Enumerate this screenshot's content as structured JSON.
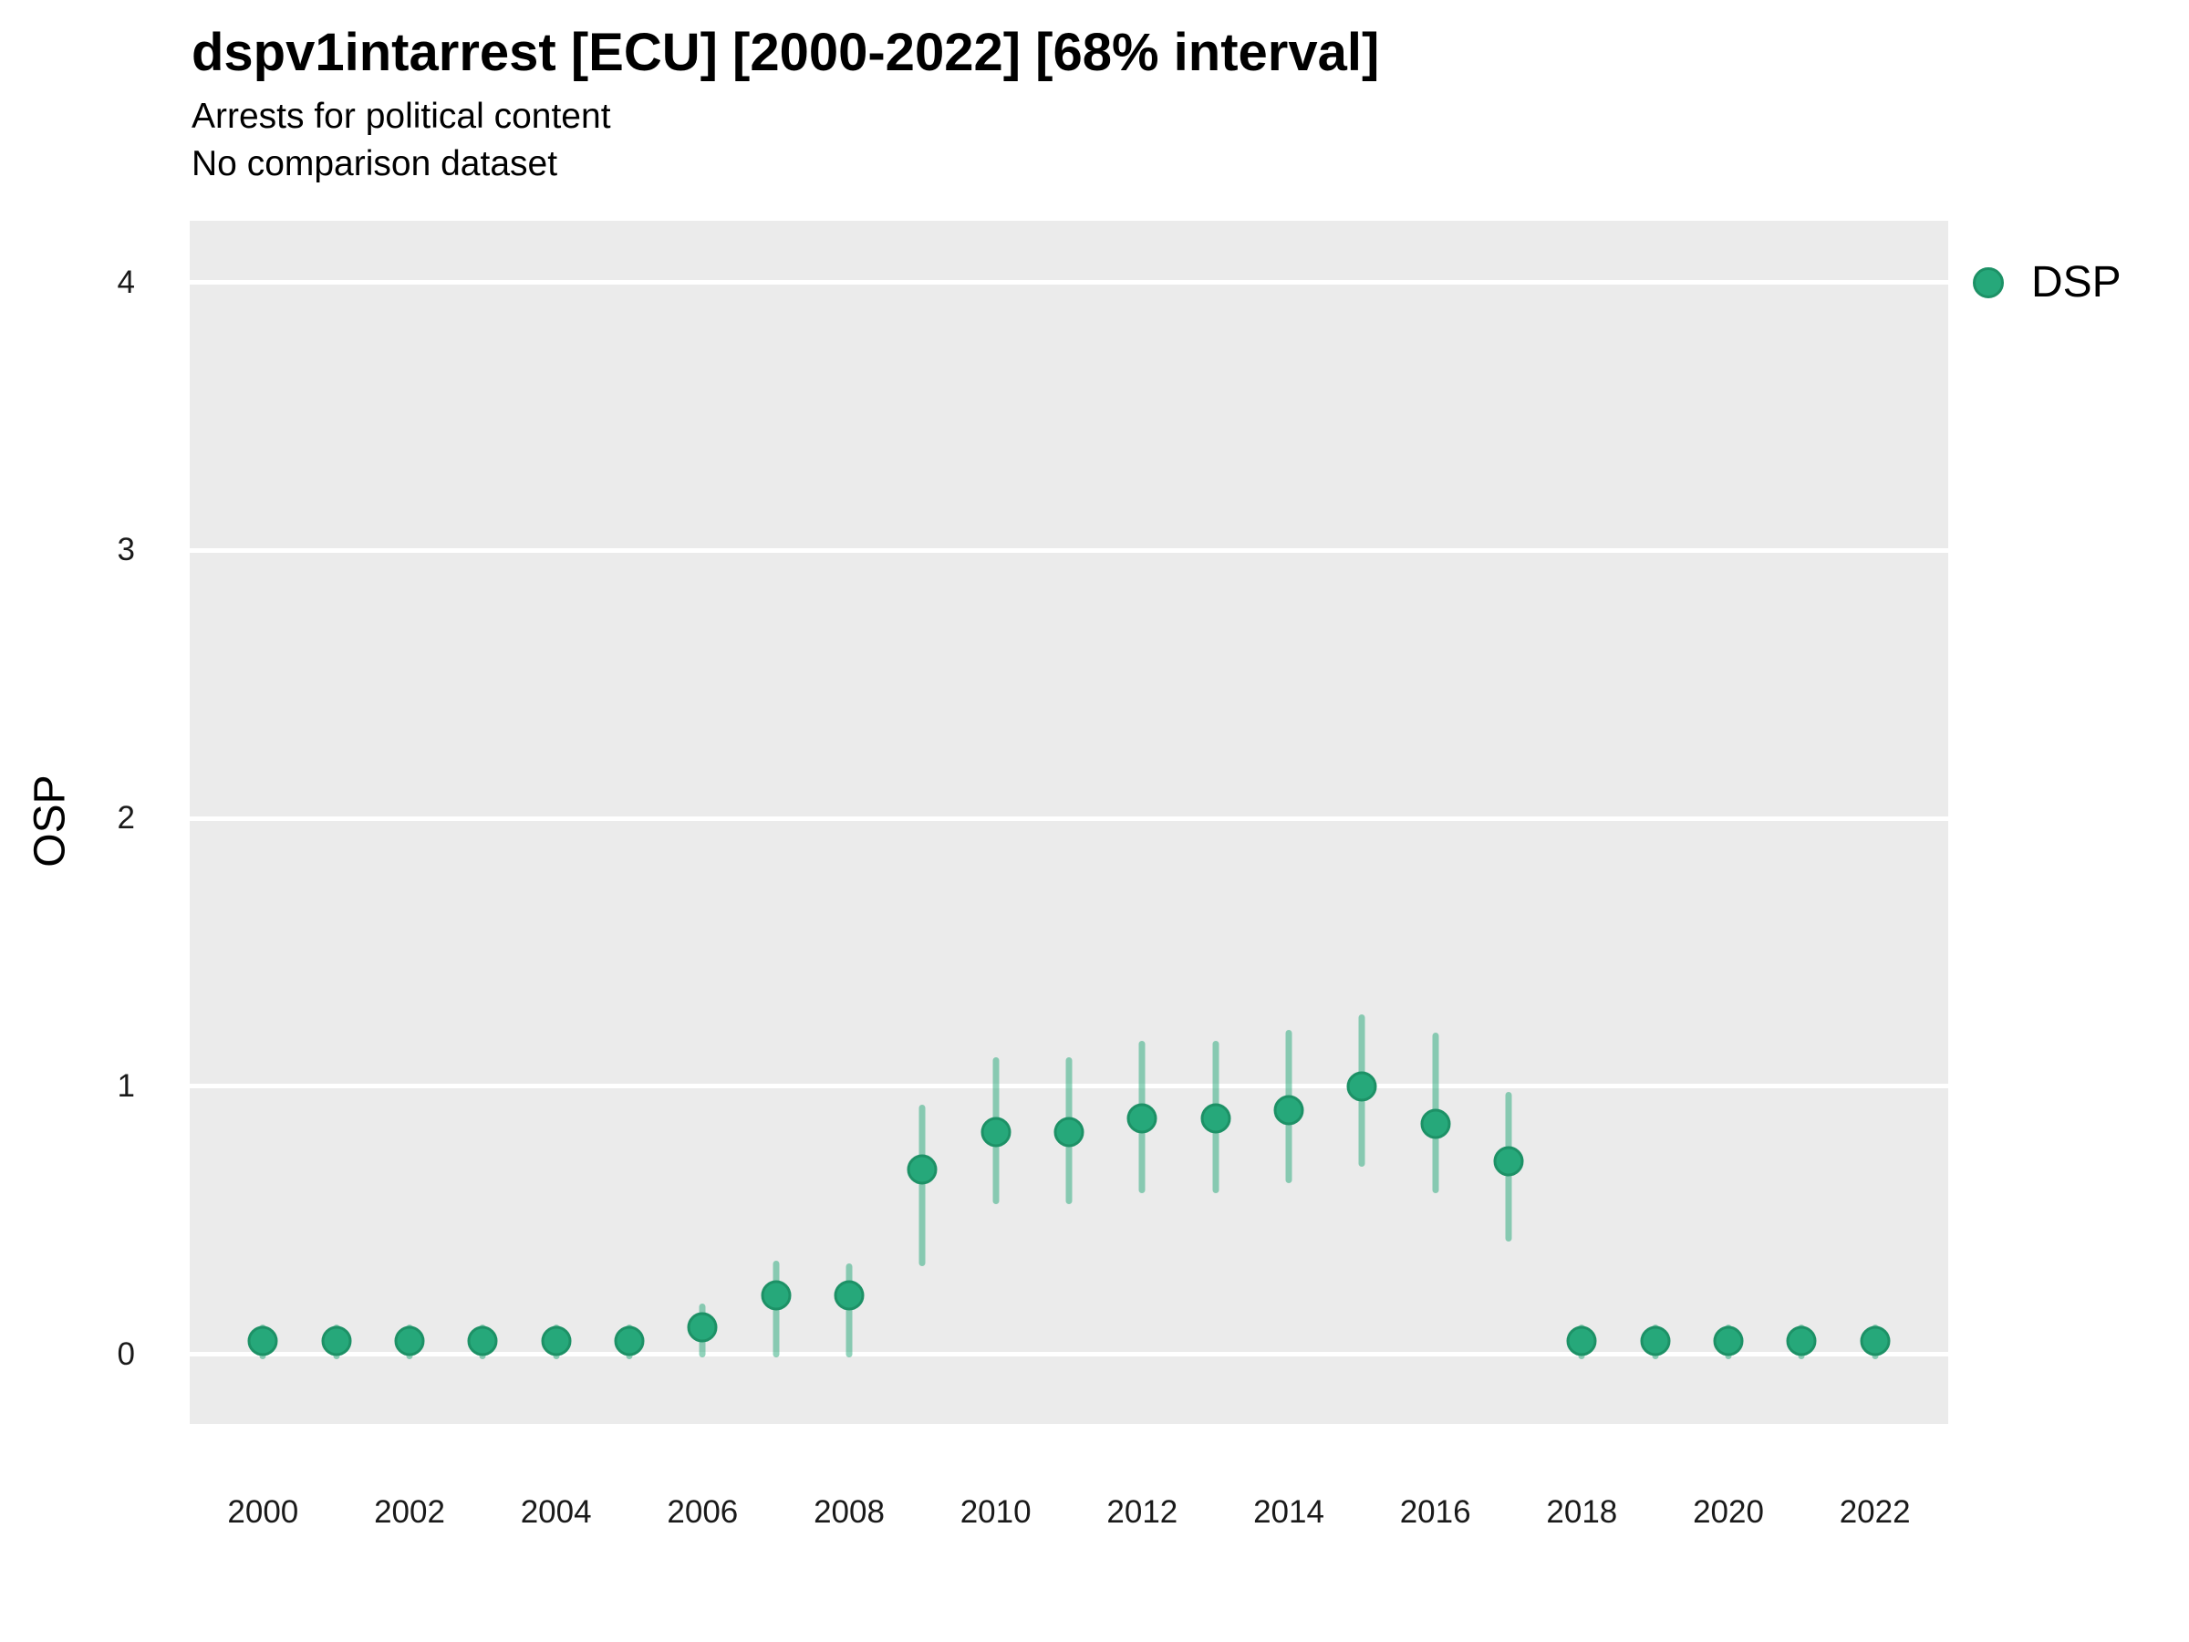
{
  "header": {
    "title": "dspv1intarrest [ECU] [2000-2022] [68% interval]",
    "subtitle_line1": "Arrests for political content",
    "subtitle_line2": "No comparison dataset"
  },
  "legend": {
    "label": "DSP",
    "marker_color": "#26A87A",
    "position": "top-right"
  },
  "axes": {
    "y_title": "OSP",
    "x_title": ""
  },
  "chart_data": {
    "type": "scatter",
    "title": "dspv1intarrest [ECU] [2000-2022] [68% interval]",
    "subtitle": [
      "Arrests for political content",
      "No comparison dataset"
    ],
    "xlabel": "",
    "ylabel": "OSP",
    "interval_label": "68% interval",
    "x_ticks": [
      2000,
      2002,
      2004,
      2006,
      2008,
      2010,
      2012,
      2014,
      2016,
      2018,
      2020,
      2022
    ],
    "y_ticks": [
      0,
      1,
      2,
      3,
      4
    ],
    "xlim": [
      1999,
      2023
    ],
    "ylim": [
      -0.26,
      4.23
    ],
    "grid": "horizontal-major-only",
    "legend_position": "top-right",
    "panel_bg": "#EBEBEB",
    "gridline_color": "#FFFFFF",
    "series": [
      {
        "name": "DSP",
        "point_color": "#26A87A",
        "point_edge_color": "#1D9166",
        "interval_color": "#23A878",
        "interval_alpha": 0.5,
        "points": [
          {
            "year": 2000,
            "est": 0.05,
            "lo": -0.02,
            "hi": 0.11
          },
          {
            "year": 2001,
            "est": 0.05,
            "lo": -0.02,
            "hi": 0.11
          },
          {
            "year": 2002,
            "est": 0.05,
            "lo": -0.02,
            "hi": 0.11
          },
          {
            "year": 2003,
            "est": 0.05,
            "lo": -0.02,
            "hi": 0.11
          },
          {
            "year": 2004,
            "est": 0.05,
            "lo": -0.02,
            "hi": 0.11
          },
          {
            "year": 2005,
            "est": 0.05,
            "lo": -0.02,
            "hi": 0.11
          },
          {
            "year": 2006,
            "est": 0.1,
            "lo": -0.01,
            "hi": 0.19
          },
          {
            "year": 2007,
            "est": 0.22,
            "lo": -0.01,
            "hi": 0.35
          },
          {
            "year": 2008,
            "est": 0.22,
            "lo": -0.01,
            "hi": 0.34
          },
          {
            "year": 2009,
            "est": 0.69,
            "lo": 0.33,
            "hi": 0.93
          },
          {
            "year": 2010,
            "est": 0.83,
            "lo": 0.56,
            "hi": 1.11
          },
          {
            "year": 2011,
            "est": 0.83,
            "lo": 0.56,
            "hi": 1.11
          },
          {
            "year": 2012,
            "est": 0.88,
            "lo": 0.6,
            "hi": 1.17
          },
          {
            "year": 2013,
            "est": 0.88,
            "lo": 0.6,
            "hi": 1.17
          },
          {
            "year": 2014,
            "est": 0.91,
            "lo": 0.64,
            "hi": 1.21
          },
          {
            "year": 2015,
            "est": 1.0,
            "lo": 0.7,
            "hi": 1.27
          },
          {
            "year": 2016,
            "est": 0.86,
            "lo": 0.6,
            "hi": 1.2
          },
          {
            "year": 2017,
            "est": 0.72,
            "lo": 0.42,
            "hi": 0.98
          },
          {
            "year": 2018,
            "est": 0.05,
            "lo": -0.02,
            "hi": 0.11
          },
          {
            "year": 2019,
            "est": 0.05,
            "lo": -0.02,
            "hi": 0.11
          },
          {
            "year": 2020,
            "est": 0.05,
            "lo": -0.02,
            "hi": 0.11
          },
          {
            "year": 2021,
            "est": 0.05,
            "lo": -0.02,
            "hi": 0.11
          },
          {
            "year": 2022,
            "est": 0.05,
            "lo": -0.02,
            "hi": 0.11
          }
        ]
      }
    ]
  }
}
